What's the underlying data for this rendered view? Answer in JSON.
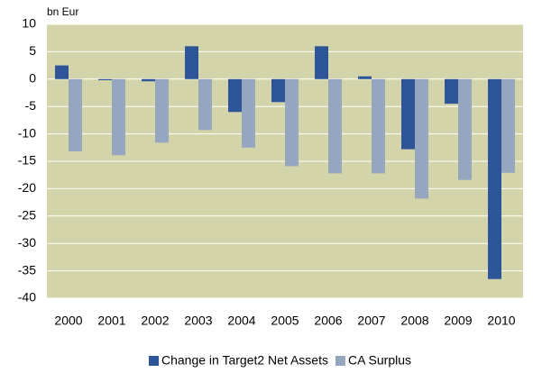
{
  "chart_data": {
    "type": "bar",
    "y_label": "bn Eur",
    "categories": [
      "2000",
      "2001",
      "2002",
      "2003",
      "2004",
      "2005",
      "2006",
      "2007",
      "2008",
      "2009",
      "2010"
    ],
    "series": [
      {
        "name": "Change in Target2 Net Assets",
        "color": "#2e5597",
        "values": [
          2.5,
          -0.2,
          -0.4,
          6,
          -6,
          -4.2,
          6,
          0.5,
          -12.8,
          -4.5,
          -36.5
        ]
      },
      {
        "name": "CA Surplus",
        "color": "#97a6bf",
        "values": [
          -13.2,
          -13.9,
          -11.6,
          -9.3,
          -12.5,
          -15.9,
          -17.2,
          -17.2,
          -21.8,
          -18.4,
          -17.1
        ]
      }
    ],
    "ylim": [
      -40,
      10
    ],
    "yticks": [
      -40,
      -35,
      -30,
      -25,
      -20,
      -15,
      -10,
      -5,
      0,
      5,
      10
    ],
    "grid": true,
    "plot_background": "#d3d4a9",
    "grid_color": "#ffffff"
  }
}
